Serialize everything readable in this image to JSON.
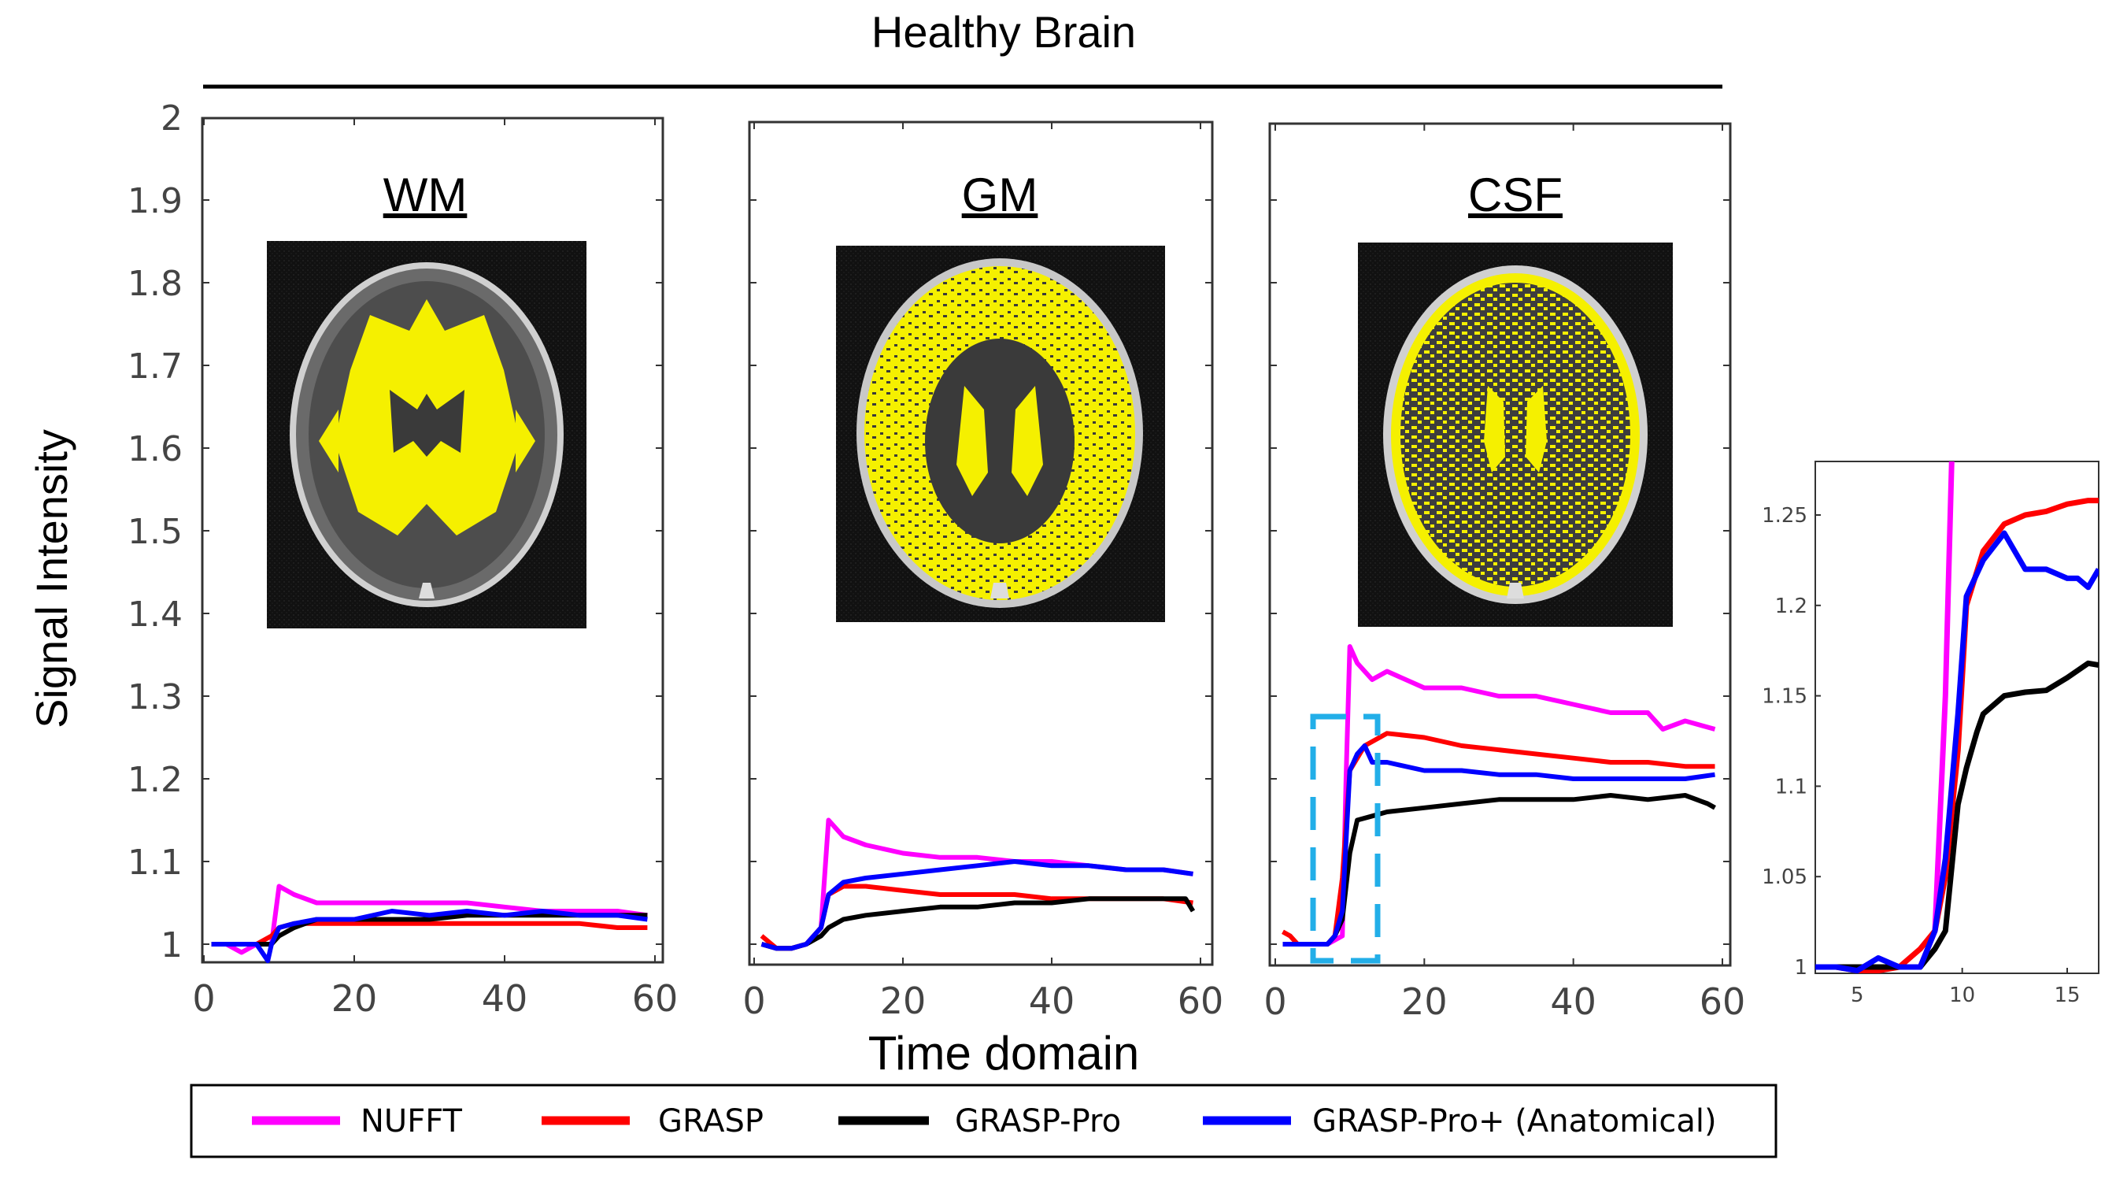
{
  "chart_data": {
    "title": "Healthy Brain",
    "type": "line",
    "ylabel": "Signal Intensity",
    "xlabel": "Time domain",
    "ylim": [
      0.98,
      2.0
    ],
    "xlim": [
      0,
      60
    ],
    "yticks": [
      "1",
      "1.1",
      "1.2",
      "1.3",
      "1.4",
      "1.5",
      "1.6",
      "1.7",
      "1.8",
      "1.9",
      "2"
    ],
    "xticks": [
      "0",
      "20",
      "40",
      "60"
    ],
    "legend": [
      {
        "name": "NUFFT",
        "color": "#ff00ff"
      },
      {
        "name": "GRASP",
        "color": "#ff0000"
      },
      {
        "name": "GRASP-Pro",
        "color": "#000000"
      },
      {
        "name": "GRASP-Pro+ (Anatomical)",
        "color": "#0000ff"
      }
    ],
    "panels": [
      {
        "title": "WM",
        "image": "brain-mri-white-matter-segmentation",
        "series": [
          {
            "name": "NUFFT",
            "x": [
              1,
              3,
              5,
              7,
              9,
              10,
              12,
              15,
              20,
              25,
              30,
              35,
              40,
              45,
              50,
              55,
              59
            ],
            "y": [
              1.0,
              1.0,
              0.99,
              1.0,
              1.0,
              1.07,
              1.06,
              1.05,
              1.05,
              1.05,
              1.05,
              1.05,
              1.045,
              1.04,
              1.04,
              1.04,
              1.035
            ]
          },
          {
            "name": "GRASP",
            "x": [
              1,
              3,
              5,
              7,
              9,
              10,
              12,
              15,
              20,
              25,
              30,
              35,
              40,
              45,
              50,
              55,
              59
            ],
            "y": [
              1.0,
              1.0,
              1.0,
              1.0,
              1.01,
              1.02,
              1.025,
              1.025,
              1.025,
              1.025,
              1.025,
              1.025,
              1.025,
              1.025,
              1.025,
              1.02,
              1.02
            ]
          },
          {
            "name": "GRASP-Pro",
            "x": [
              1,
              3,
              5,
              7,
              9,
              10,
              12,
              15,
              20,
              25,
              30,
              35,
              40,
              45,
              50,
              55,
              59
            ],
            "y": [
              1.0,
              1.0,
              1.0,
              1.0,
              1.0,
              1.01,
              1.02,
              1.03,
              1.03,
              1.03,
              1.03,
              1.035,
              1.035,
              1.035,
              1.035,
              1.035,
              1.035
            ]
          },
          {
            "name": "GRASP-Pro+ (Anatomical)",
            "x": [
              1,
              3,
              5,
              7,
              8.5,
              9,
              10,
              12,
              15,
              20,
              25,
              30,
              35,
              40,
              45,
              50,
              55,
              59
            ],
            "y": [
              1.0,
              1.0,
              1.0,
              1.0,
              0.98,
              1.0,
              1.02,
              1.025,
              1.03,
              1.03,
              1.04,
              1.035,
              1.04,
              1.035,
              1.04,
              1.035,
              1.035,
              1.03
            ]
          }
        ]
      },
      {
        "title": "GM",
        "image": "brain-mri-gray-matter-segmentation",
        "series": [
          {
            "name": "NUFFT",
            "x": [
              1,
              3,
              5,
              7,
              9,
              10,
              12,
              15,
              20,
              25,
              30,
              35,
              40,
              45,
              50,
              55,
              59
            ],
            "y": [
              1.0,
              0.995,
              0.995,
              1.0,
              1.02,
              1.15,
              1.13,
              1.12,
              1.11,
              1.105,
              1.105,
              1.1,
              1.1,
              1.095,
              1.09,
              1.09,
              1.085
            ]
          },
          {
            "name": "GRASP",
            "x": [
              1,
              3,
              5,
              7,
              9,
              10,
              12,
              15,
              20,
              25,
              30,
              35,
              40,
              45,
              50,
              55,
              59
            ],
            "y": [
              1.01,
              0.995,
              0.995,
              1.0,
              1.02,
              1.06,
              1.07,
              1.07,
              1.065,
              1.06,
              1.06,
              1.06,
              1.055,
              1.055,
              1.055,
              1.055,
              1.05
            ]
          },
          {
            "name": "GRASP-Pro",
            "x": [
              1,
              3,
              5,
              7,
              9,
              10,
              12,
              15,
              20,
              25,
              30,
              35,
              40,
              45,
              50,
              55,
              58,
              59
            ],
            "y": [
              1.0,
              0.995,
              0.995,
              1.0,
              1.01,
              1.02,
              1.03,
              1.035,
              1.04,
              1.045,
              1.045,
              1.05,
              1.05,
              1.055,
              1.055,
              1.055,
              1.055,
              1.04
            ]
          },
          {
            "name": "GRASP-Pro+ (Anatomical)",
            "x": [
              1,
              3,
              5,
              7,
              9,
              10,
              12,
              15,
              20,
              25,
              30,
              35,
              40,
              45,
              50,
              55,
              59
            ],
            "y": [
              1.0,
              0.995,
              0.995,
              1.0,
              1.02,
              1.06,
              1.075,
              1.08,
              1.085,
              1.09,
              1.095,
              1.1,
              1.095,
              1.095,
              1.09,
              1.09,
              1.085
            ]
          }
        ]
      },
      {
        "title": "CSF",
        "image": "brain-mri-csf-segmentation",
        "series": [
          {
            "name": "NUFFT",
            "x": [
              1,
              3,
              5,
              7,
              9,
              9.5,
              10,
              11,
              13,
              15,
              20,
              25,
              30,
              35,
              40,
              45,
              50,
              52,
              55,
              59
            ],
            "y": [
              1.0,
              1.0,
              1.0,
              1.0,
              1.01,
              1.2,
              1.36,
              1.34,
              1.32,
              1.33,
              1.31,
              1.31,
              1.3,
              1.3,
              1.29,
              1.28,
              1.28,
              1.26,
              1.27,
              1.26
            ]
          },
          {
            "name": "GRASP",
            "x": [
              1,
              2,
              3,
              5,
              7,
              8,
              9,
              10,
              12,
              15,
              20,
              25,
              30,
              35,
              40,
              45,
              50,
              55,
              59
            ],
            "y": [
              1.015,
              1.01,
              1.0,
              1.0,
              1.0,
              1.01,
              1.08,
              1.21,
              1.24,
              1.255,
              1.25,
              1.24,
              1.235,
              1.23,
              1.225,
              1.22,
              1.22,
              1.215,
              1.215
            ]
          },
          {
            "name": "GRASP-Pro",
            "x": [
              1,
              3,
              5,
              7,
              8,
              9,
              10,
              11,
              13,
              15,
              20,
              25,
              30,
              35,
              40,
              45,
              50,
              55,
              58,
              59
            ],
            "y": [
              1.0,
              1.0,
              1.0,
              1.0,
              1.01,
              1.03,
              1.11,
              1.15,
              1.155,
              1.16,
              1.165,
              1.17,
              1.175,
              1.175,
              1.175,
              1.18,
              1.175,
              1.18,
              1.17,
              1.165
            ]
          },
          {
            "name": "GRASP-Pro+ (Anatomical)",
            "x": [
              1,
              3,
              5,
              7,
              8,
              9,
              10,
              11,
              12,
              13,
              15,
              20,
              25,
              30,
              35,
              40,
              45,
              50,
              55,
              59
            ],
            "y": [
              1.0,
              1.0,
              1.0,
              1.0,
              1.01,
              1.04,
              1.21,
              1.23,
              1.24,
              1.22,
              1.22,
              1.21,
              1.21,
              1.205,
              1.205,
              1.2,
              1.2,
              1.2,
              1.2,
              1.205
            ]
          }
        ]
      }
    ],
    "inset": {
      "xlim": [
        3,
        16.5
      ],
      "ylim": [
        0.995,
        1.28
      ],
      "xticks": [
        "5",
        "10",
        "15"
      ],
      "yticks": [
        "1",
        "1.05",
        "1.1",
        "1.15",
        "1.2",
        "1.25"
      ],
      "series": [
        {
          "name": "NUFFT",
          "x": [
            3,
            4,
            5,
            6,
            7,
            8,
            8.7,
            9.2,
            9.5,
            9.8
          ],
          "y": [
            1.0,
            1.0,
            1.0,
            1.0,
            1.0,
            1.0,
            1.02,
            1.15,
            1.28,
            1.29
          ]
        },
        {
          "name": "GRASP",
          "x": [
            3,
            4,
            5,
            6,
            7,
            8,
            8.7,
            9.2,
            9.8,
            10.2,
            11,
            12,
            13,
            14,
            15,
            16,
            16.5
          ],
          "y": [
            1.0,
            1.0,
            0.998,
            0.998,
            1.0,
            1.01,
            1.02,
            1.05,
            1.12,
            1.2,
            1.23,
            1.245,
            1.25,
            1.252,
            1.256,
            1.258,
            1.258
          ]
        },
        {
          "name": "GRASP-Pro",
          "x": [
            3,
            4,
            5,
            6,
            7,
            8,
            8.7,
            9.2,
            9.8,
            10.2,
            10.7,
            11,
            12,
            13,
            14,
            15,
            16,
            16.5
          ],
          "y": [
            1.0,
            1.0,
            1.0,
            1.0,
            1.0,
            1.0,
            1.01,
            1.02,
            1.09,
            1.11,
            1.13,
            1.14,
            1.15,
            1.152,
            1.153,
            1.16,
            1.168,
            1.167
          ]
        },
        {
          "name": "GRASP-Pro+ (Anatomical)",
          "x": [
            3,
            4,
            5,
            6,
            7,
            8,
            8.7,
            9.2,
            9.8,
            10.2,
            11,
            12,
            12.5,
            13,
            14,
            15,
            15.5,
            16,
            16.5
          ],
          "y": [
            1.0,
            1.0,
            0.998,
            1.005,
            1.0,
            1.0,
            1.02,
            1.06,
            1.14,
            1.205,
            1.225,
            1.24,
            1.23,
            1.22,
            1.22,
            1.215,
            1.215,
            1.21,
            1.22
          ]
        }
      ]
    }
  }
}
